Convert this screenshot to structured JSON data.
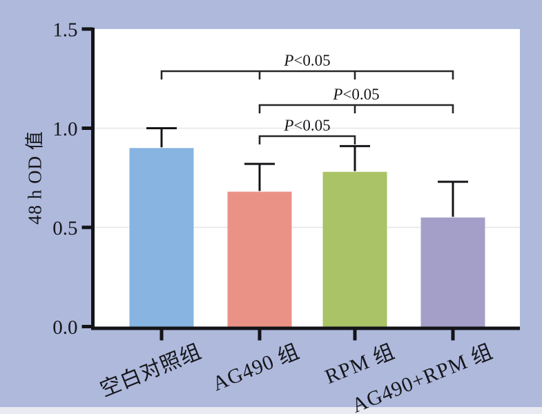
{
  "figure": {
    "background_color": "#aeb9dc",
    "plot_background_color": "#ffffff",
    "bottom_strip_color": "#e9eaf2",
    "axis_color": "#141418",
    "grid_color": "#e6e6e9"
  },
  "chart_data": {
    "type": "bar",
    "title": "",
    "xlabel": "",
    "ylabel": "48 h OD 值",
    "ylim": [
      0,
      1.5
    ],
    "yticks": [
      0.0,
      0.5,
      1.0,
      1.5
    ],
    "ytick_labels": [
      "0.0",
      "0.5",
      "1.0",
      "1.5"
    ],
    "gridlines_at": [
      0.5,
      1.0
    ],
    "grid": true,
    "legend_position": "none",
    "categories": [
      "空白对照组",
      "AG490 组",
      "RPM 组",
      "AG490+RPM 组"
    ],
    "values": [
      0.9,
      0.68,
      0.78,
      0.55
    ],
    "errors": [
      0.1,
      0.14,
      0.13,
      0.18
    ],
    "error_bar_direction": "upper",
    "bar_colors": [
      "#87b4e1",
      "#eb9286",
      "#a9c366",
      "#a49fc9"
    ],
    "significance_brackets": [
      {
        "label": "P<0.05",
        "from_group": 0,
        "to_group": 3,
        "tick_groups": [
          0,
          1,
          2,
          3
        ]
      },
      {
        "label": "P<0.05",
        "from_group": 1,
        "to_group": 3,
        "tick_groups": [
          1,
          2,
          3
        ]
      },
      {
        "label": "P<0.05",
        "from_group": 1,
        "to_group": 2,
        "tick_groups": [
          1,
          2
        ]
      }
    ]
  }
}
